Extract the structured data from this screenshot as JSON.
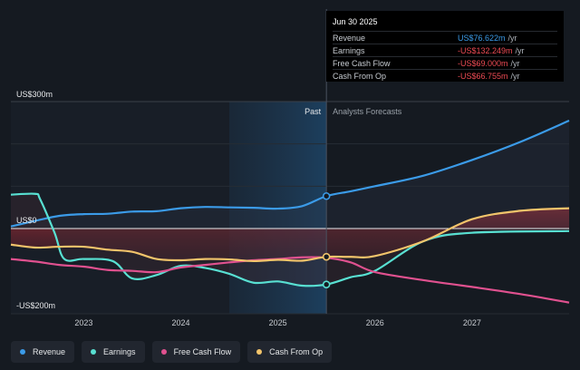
{
  "chart_data": {
    "type": "line",
    "y_labels": {
      "top": "US$300m",
      "zero": "US$0",
      "bottom": "-US$200m"
    },
    "ylim": [
      -200,
      300
    ],
    "x_ticks": [
      "2023",
      "2024",
      "2025",
      "2026",
      "2027"
    ],
    "x_tick_values": [
      2023,
      2024,
      2025,
      2026,
      2027
    ],
    "xlim": [
      2022.25,
      2028.0
    ],
    "divider_x": 2025.5,
    "past_band_start": 2024.5,
    "past_label": "Past",
    "forecast_label": "Analysts Forecasts",
    "series": [
      {
        "name": "Revenue",
        "color": "#3b9be8",
        "points": [
          [
            2022.25,
            5
          ],
          [
            2022.5,
            18
          ],
          [
            2022.75,
            30
          ],
          [
            2023.0,
            34
          ],
          [
            2023.25,
            35
          ],
          [
            2023.5,
            40
          ],
          [
            2023.75,
            41
          ],
          [
            2024.0,
            48
          ],
          [
            2024.25,
            51
          ],
          [
            2024.5,
            50
          ],
          [
            2024.75,
            49
          ],
          [
            2025.0,
            47
          ],
          [
            2025.25,
            53
          ],
          [
            2025.5,
            76.6
          ],
          [
            2025.75,
            88
          ],
          [
            2026.0,
            100
          ],
          [
            2026.5,
            125
          ],
          [
            2027.0,
            162
          ],
          [
            2027.5,
            205
          ],
          [
            2028.0,
            255
          ]
        ]
      },
      {
        "name": "Earnings",
        "color": "#58e0d2",
        "points": [
          [
            2022.25,
            80
          ],
          [
            2022.5,
            82
          ],
          [
            2022.55,
            70
          ],
          [
            2022.7,
            -10
          ],
          [
            2022.8,
            -72
          ],
          [
            2023.0,
            -72
          ],
          [
            2023.3,
            -77
          ],
          [
            2023.5,
            -118
          ],
          [
            2023.75,
            -110
          ],
          [
            2024.0,
            -88
          ],
          [
            2024.25,
            -93
          ],
          [
            2024.5,
            -107
          ],
          [
            2024.75,
            -128
          ],
          [
            2025.0,
            -125
          ],
          [
            2025.25,
            -135
          ],
          [
            2025.5,
            -132.2
          ],
          [
            2025.75,
            -115
          ],
          [
            2026.0,
            -100
          ],
          [
            2026.5,
            -30
          ],
          [
            2027.0,
            -10
          ],
          [
            2028.0,
            -6
          ]
        ]
      },
      {
        "name": "Free Cash Flow",
        "color": "#e0518f",
        "points": [
          [
            2022.25,
            -72
          ],
          [
            2022.5,
            -78
          ],
          [
            2022.75,
            -86
          ],
          [
            2023.0,
            -90
          ],
          [
            2023.25,
            -98
          ],
          [
            2023.5,
            -100
          ],
          [
            2023.75,
            -103
          ],
          [
            2024.0,
            -92
          ],
          [
            2024.25,
            -86
          ],
          [
            2024.5,
            -80
          ],
          [
            2024.75,
            -75
          ],
          [
            2025.0,
            -72
          ],
          [
            2025.25,
            -68
          ],
          [
            2025.5,
            -69
          ],
          [
            2025.75,
            -80
          ],
          [
            2026.0,
            -103
          ],
          [
            2026.5,
            -122
          ],
          [
            2027.0,
            -138
          ],
          [
            2027.5,
            -155
          ],
          [
            2028.0,
            -175
          ]
        ]
      },
      {
        "name": "Cash From Op",
        "color": "#f2c46b",
        "points": [
          [
            2022.25,
            -38
          ],
          [
            2022.5,
            -45
          ],
          [
            2022.75,
            -43
          ],
          [
            2023.0,
            -43
          ],
          [
            2023.25,
            -50
          ],
          [
            2023.5,
            -55
          ],
          [
            2023.75,
            -72
          ],
          [
            2024.0,
            -75
          ],
          [
            2024.25,
            -72
          ],
          [
            2024.5,
            -73
          ],
          [
            2024.75,
            -77
          ],
          [
            2025.0,
            -74
          ],
          [
            2025.25,
            -76
          ],
          [
            2025.5,
            -66.8
          ],
          [
            2025.75,
            -67
          ],
          [
            2026.0,
            -65
          ],
          [
            2026.5,
            -30
          ],
          [
            2027.0,
            22
          ],
          [
            2027.5,
            42
          ],
          [
            2028.0,
            48
          ]
        ]
      }
    ]
  },
  "tooltip": {
    "date": "Jun 30 2025",
    "rows": [
      {
        "label": "Revenue",
        "value": "US$76.622m",
        "unit": "/yr",
        "color": "#3b9be8"
      },
      {
        "label": "Earnings",
        "value": "-US$132.249m",
        "unit": "/yr",
        "color": "#ee4b54"
      },
      {
        "label": "Free Cash Flow",
        "value": "-US$69.000m",
        "unit": "/yr",
        "color": "#ee4b54"
      },
      {
        "label": "Cash From Op",
        "value": "-US$66.755m",
        "unit": "/yr",
        "color": "#ee4b54"
      }
    ]
  },
  "legend": [
    {
      "label": "Revenue",
      "color": "#3b9be8"
    },
    {
      "label": "Earnings",
      "color": "#58e0d2"
    },
    {
      "label": "Free Cash Flow",
      "color": "#e0518f"
    },
    {
      "label": "Cash From Op",
      "color": "#f2c46b"
    }
  ]
}
